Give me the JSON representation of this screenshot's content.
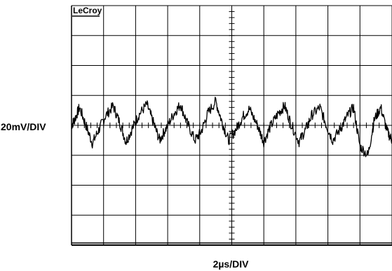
{
  "chart_data": {
    "type": "line",
    "brand": "LeCroy",
    "ylabel": "20mV/DIV",
    "xlabel": "2µs/DIV",
    "x_divisions": 10,
    "y_divisions": 8,
    "x_range_us": [
      0,
      20
    ],
    "y_range_mV": [
      -80,
      80
    ],
    "grid": true,
    "colors": {
      "trace": "#000000",
      "grid": "#000000",
      "background": "#ffffff"
    },
    "series": [
      {
        "x": [
          0,
          0.2,
          0.5,
          0.9,
          1.3,
          1.7,
          2.1,
          2.6,
          3.0,
          3.4,
          3.8,
          4.2,
          4.7,
          5.1,
          5.5,
          5.9,
          6.4,
          6.8,
          7.2,
          7.7,
          8.1,
          8.5,
          9.0,
          9.4,
          9.8,
          10.3,
          10.7,
          11.1,
          11.6,
          12.0,
          12.4,
          12.9,
          13.3,
          13.7,
          14.2,
          14.6,
          15.0,
          15.5,
          15.9,
          16.3,
          16.8,
          17.2,
          17.6,
          18.0,
          18.5,
          18.9,
          19.3,
          19.7,
          20.0
        ],
        "y": [
          0,
          4,
          12,
          0,
          -12,
          -3,
          6,
          13,
          2,
          -11,
          -2,
          7,
          14,
          2,
          -10,
          -2,
          8,
          14,
          2,
          -10,
          -4,
          8,
          16,
          2,
          -10,
          -2,
          6,
          11,
          0,
          -11,
          -1,
          8,
          13,
          1,
          -11,
          -3,
          7,
          12,
          0,
          -10,
          -2,
          6,
          12,
          -14,
          -20,
          4,
          12,
          -4,
          -10
        ]
      }
    ]
  }
}
